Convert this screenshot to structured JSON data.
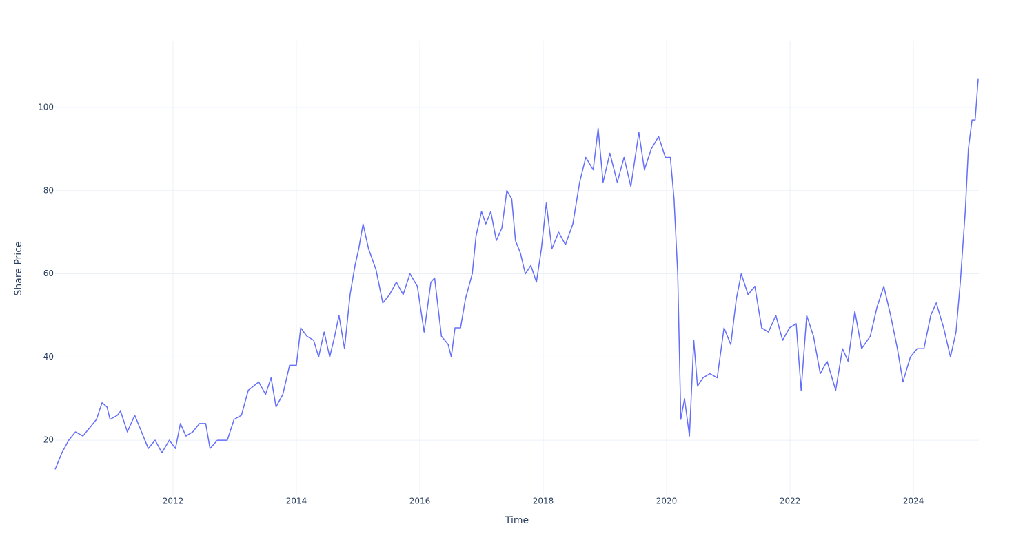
{
  "chart_data": {
    "type": "line",
    "x_label": "Time",
    "y_label": "Share Price",
    "x": [
      2010.09,
      2010.2,
      2010.31,
      2010.42,
      2010.54,
      2010.65,
      2010.76,
      2010.85,
      2010.93,
      2010.98,
      2011.1,
      2011.15,
      2011.26,
      2011.38,
      2011.49,
      2011.6,
      2011.71,
      2011.82,
      2011.94,
      2012.04,
      2012.12,
      2012.21,
      2012.32,
      2012.43,
      2012.53,
      2012.6,
      2012.72,
      2012.88,
      2012.99,
      2013.11,
      2013.22,
      2013.39,
      2013.5,
      2013.59,
      2013.67,
      2013.78,
      2013.89,
      2014.0,
      2014.07,
      2014.17,
      2014.28,
      2014.36,
      2014.45,
      2014.54,
      2014.62,
      2014.69,
      2014.78,
      2014.87,
      2014.95,
      2015.01,
      2015.08,
      2015.17,
      2015.29,
      2015.4,
      2015.51,
      2015.62,
      2015.73,
      2015.84,
      2015.96,
      2016.07,
      2016.18,
      2016.24,
      2016.35,
      2016.46,
      2016.51,
      2016.57,
      2016.66,
      2016.74,
      2016.85,
      2016.91,
      2017.0,
      2017.07,
      2017.15,
      2017.24,
      2017.33,
      2017.41,
      2017.49,
      2017.55,
      2017.63,
      2017.71,
      2017.8,
      2017.89,
      2017.97,
      2018.05,
      2018.14,
      2018.25,
      2018.36,
      2018.48,
      2018.59,
      2018.69,
      2018.81,
      2018.89,
      2018.97,
      2019.08,
      2019.2,
      2019.31,
      2019.42,
      2019.55,
      2019.64,
      2019.75,
      2019.87,
      2019.98,
      2020.06,
      2020.12,
      2020.18,
      2020.23,
      2020.29,
      2020.37,
      2020.44,
      2020.5,
      2020.59,
      2020.7,
      2020.82,
      2020.93,
      2021.04,
      2021.13,
      2021.21,
      2021.32,
      2021.43,
      2021.54,
      2021.65,
      2021.77,
      2021.88,
      2021.99,
      2022.1,
      2022.18,
      2022.27,
      2022.38,
      2022.49,
      2022.6,
      2022.74,
      2022.85,
      2022.94,
      2023.05,
      2023.16,
      2023.3,
      2023.41,
      2023.52,
      2023.63,
      2023.74,
      2023.83,
      2023.95,
      2024.06,
      2024.17,
      2024.28,
      2024.37,
      2024.49,
      2024.6,
      2024.69,
      2024.76,
      2024.84,
      2024.89,
      2024.95,
      2025.0,
      2025.05
    ],
    "series": [
      {
        "name": "Share Price",
        "color": "#636efa",
        "values": [
          13,
          17,
          20,
          22,
          21,
          23,
          25,
          29,
          28,
          25,
          26,
          27,
          22,
          26,
          22,
          18,
          20,
          17,
          20,
          18,
          24,
          21,
          22,
          24,
          24,
          18,
          20,
          20,
          25,
          26,
          32,
          34,
          31,
          35,
          28,
          31,
          38,
          38,
          47,
          45,
          44,
          40,
          46,
          40,
          45,
          50,
          42,
          55,
          62,
          66,
          72,
          66,
          61,
          53,
          55,
          58,
          55,
          60,
          57,
          46,
          58,
          59,
          45,
          43,
          40,
          47,
          47,
          54,
          60,
          69,
          75,
          72,
          75,
          68,
          71,
          80,
          78,
          68,
          65,
          60,
          62,
          58,
          66,
          77,
          66,
          70,
          67,
          72,
          82,
          88,
          85,
          95,
          82,
          89,
          82,
          88,
          81,
          94,
          85,
          90,
          93,
          88,
          88,
          78,
          60,
          25,
          30,
          21,
          44,
          33,
          35,
          36,
          35,
          47,
          43,
          54,
          60,
          55,
          57,
          47,
          46,
          50,
          44,
          47,
          48,
          32,
          50,
          45,
          36,
          39,
          32,
          42,
          39,
          51,
          42,
          45,
          52,
          57,
          50,
          42,
          34,
          40,
          42,
          42,
          50,
          53,
          47,
          40,
          46,
          58,
          75,
          90,
          97,
          97,
          107
        ]
      }
    ],
    "xlim": [
      2010.09,
      2025.06
    ],
    "ylim": [
      6.6,
      115.9
    ],
    "xticks": [
      2012,
      2014,
      2016,
      2018,
      2020,
      2022,
      2024
    ],
    "yticks": [
      20,
      40,
      60,
      80,
      100
    ],
    "grid": true
  }
}
